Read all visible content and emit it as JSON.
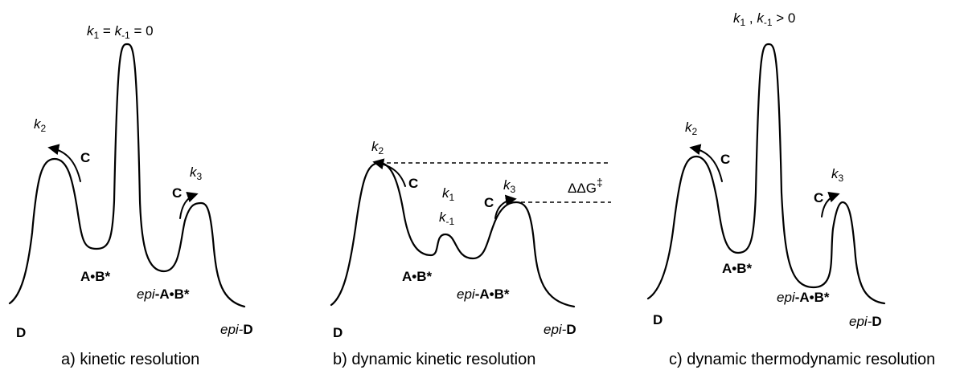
{
  "panels": [
    {
      "caption": "a) kinetic resolution",
      "rate_header": {
        "parts": [
          "k",
          "1",
          " = ",
          "k",
          "-1",
          " = 0"
        ]
      },
      "labels": {
        "D": "D",
        "AB": "A•B*",
        "epi_AB_prefix": "epi",
        "epi_AB_main": "-A•B*",
        "epi_D_prefix": "epi-",
        "epi_D_main": "D",
        "k2": [
          "k",
          "2"
        ],
        "k3": [
          "k",
          "3"
        ],
        "C_left": "C",
        "C_right": "C"
      }
    },
    {
      "caption": "b)  dynamic kinetic resolution",
      "labels": {
        "D": "D",
        "AB": "A•B*",
        "epi_AB_prefix": "epi",
        "epi_AB_main": "-A•B*",
        "epi_D_prefix": "epi-",
        "epi_D_main": "D",
        "k2": [
          "k",
          "2"
        ],
        "k3": [
          "k",
          "3"
        ],
        "k1": [
          "k",
          "1"
        ],
        "km1": [
          "k",
          "-1"
        ],
        "C_left": "C",
        "C_right": "C",
        "ddg": "ΔΔG",
        "ddg_sup": "‡"
      }
    },
    {
      "caption": "c)  dynamic thermodynamic resolution",
      "rate_header": {
        "parts": [
          "k",
          "1",
          " , ",
          "k",
          "-1",
          " > 0"
        ]
      },
      "labels": {
        "D": "D",
        "AB": "A•B*",
        "epi_AB_prefix": "epi",
        "epi_AB_main": "-A•B*",
        "epi_D_prefix": "epi-",
        "epi_D_main": "D",
        "k2": [
          "k",
          "2"
        ],
        "k3": [
          "k",
          "3"
        ],
        "C_left": "C",
        "C_right": "C"
      }
    }
  ]
}
